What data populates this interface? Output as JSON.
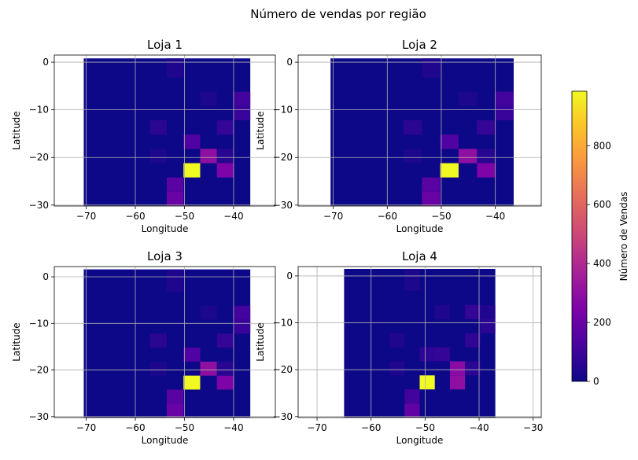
{
  "suptitle": "Número de vendas por região",
  "colorbar": {
    "label": "Número de Vendas",
    "ticks": [
      0,
      200,
      400,
      600,
      800
    ],
    "vmin": 0,
    "vmax": 985,
    "colormap": "plasma"
  },
  "chart_data": [
    {
      "type": "heatmap",
      "title": "Loja 1",
      "xlabel": "Longitude",
      "ylabel": "Latitude",
      "xlim": [
        -76.5,
        -31.5
      ],
      "ylim": [
        -30.2,
        1.5
      ],
      "xticks": [
        -70,
        -60,
        -50,
        -40
      ],
      "yticks": [
        0,
        -10,
        -20,
        -30
      ],
      "grid": true,
      "bin_edges_x": [
        -70.5,
        -67.2,
        -63.8,
        -60.4,
        -57.0,
        -53.6,
        -50.2,
        -46.8,
        -43.4,
        -40.0,
        -36.6
      ],
      "bin_edges_y": [
        -30.2,
        -27.2,
        -24.2,
        -21.2,
        -18.2,
        -15.2,
        -12.2,
        -9.2,
        -6.2,
        -3.2,
        0.8
      ],
      "cells": [
        {
          "xi": 5,
          "yi": 0,
          "value": 200
        },
        {
          "xi": 5,
          "yi": 1,
          "value": 160
        },
        {
          "xi": 6,
          "yi": 2,
          "value": 985
        },
        {
          "xi": 8,
          "yi": 2,
          "value": 250
        },
        {
          "xi": 7,
          "yi": 3,
          "value": 300
        },
        {
          "xi": 8,
          "yi": 3,
          "value": 55
        },
        {
          "xi": 4,
          "yi": 3,
          "value": 30
        },
        {
          "xi": 6,
          "yi": 4,
          "value": 140
        },
        {
          "xi": 4,
          "yi": 5,
          "value": 60
        },
        {
          "xi": 8,
          "yi": 5,
          "value": 80
        },
        {
          "xi": 9,
          "yi": 6,
          "value": 90
        },
        {
          "xi": 9,
          "yi": 7,
          "value": 110
        },
        {
          "xi": 7,
          "yi": 7,
          "value": 30
        },
        {
          "xi": 5,
          "yi": 9,
          "value": 40
        }
      ]
    },
    {
      "type": "heatmap",
      "title": "Loja 2",
      "xlabel": "Longitude",
      "ylabel": "Latitude",
      "xlim": [
        -76.5,
        -31.5
      ],
      "ylim": [
        -30.2,
        1.5
      ],
      "xticks": [
        -70,
        -60,
        -50,
        -40
      ],
      "yticks": [
        0,
        -10,
        -20,
        -30
      ],
      "grid": true,
      "bin_edges_x": [
        -70.5,
        -67.2,
        -63.8,
        -60.4,
        -57.0,
        -53.6,
        -50.2,
        -46.8,
        -43.4,
        -40.0,
        -36.6
      ],
      "bin_edges_y": [
        -30.2,
        -27.2,
        -24.2,
        -21.2,
        -18.2,
        -15.2,
        -12.2,
        -9.2,
        -6.2,
        -3.2,
        0.8
      ],
      "cells": [
        {
          "xi": 5,
          "yi": 0,
          "value": 200
        },
        {
          "xi": 5,
          "yi": 1,
          "value": 160
        },
        {
          "xi": 6,
          "yi": 2,
          "value": 985
        },
        {
          "xi": 8,
          "yi": 2,
          "value": 250
        },
        {
          "xi": 7,
          "yi": 3,
          "value": 300
        },
        {
          "xi": 8,
          "yi": 3,
          "value": 55
        },
        {
          "xi": 4,
          "yi": 3,
          "value": 30
        },
        {
          "xi": 6,
          "yi": 4,
          "value": 140
        },
        {
          "xi": 4,
          "yi": 5,
          "value": 60
        },
        {
          "xi": 8,
          "yi": 5,
          "value": 80
        },
        {
          "xi": 9,
          "yi": 6,
          "value": 90
        },
        {
          "xi": 9,
          "yi": 7,
          "value": 110
        },
        {
          "xi": 7,
          "yi": 7,
          "value": 30
        },
        {
          "xi": 5,
          "yi": 9,
          "value": 40
        }
      ]
    },
    {
      "type": "heatmap",
      "title": "Loja 3",
      "xlabel": "Longitude",
      "ylabel": "Latitude",
      "xlim": [
        -76.5,
        -31.5
      ],
      "ylim": [
        -30.2,
        2.2
      ],
      "xticks": [
        -70,
        -60,
        -50,
        -40
      ],
      "yticks": [
        0,
        -10,
        -20,
        -30
      ],
      "grid": true,
      "bin_edges_x": [
        -70.5,
        -67.2,
        -63.8,
        -60.4,
        -57.0,
        -53.6,
        -50.2,
        -46.8,
        -43.4,
        -40.0,
        -36.6
      ],
      "bin_edges_y": [
        -30.2,
        -27.2,
        -24.2,
        -21.2,
        -18.2,
        -15.2,
        -12.2,
        -9.2,
        -6.2,
        -3.2,
        1.6
      ],
      "cells": [
        {
          "xi": 5,
          "yi": 0,
          "value": 200
        },
        {
          "xi": 5,
          "yi": 1,
          "value": 160
        },
        {
          "xi": 6,
          "yi": 2,
          "value": 985
        },
        {
          "xi": 8,
          "yi": 2,
          "value": 250
        },
        {
          "xi": 7,
          "yi": 3,
          "value": 300
        },
        {
          "xi": 8,
          "yi": 3,
          "value": 55
        },
        {
          "xi": 4,
          "yi": 3,
          "value": 30
        },
        {
          "xi": 6,
          "yi": 4,
          "value": 140
        },
        {
          "xi": 4,
          "yi": 5,
          "value": 60
        },
        {
          "xi": 8,
          "yi": 5,
          "value": 80
        },
        {
          "xi": 9,
          "yi": 6,
          "value": 90
        },
        {
          "xi": 9,
          "yi": 7,
          "value": 110
        },
        {
          "xi": 7,
          "yi": 7,
          "value": 30
        },
        {
          "xi": 5,
          "yi": 9,
          "value": 40
        }
      ]
    },
    {
      "type": "heatmap",
      "title": "Loja 4",
      "xlabel": "Longitude",
      "ylabel": "Latitude",
      "xlim": [
        -73.5,
        -28.5
      ],
      "ylim": [
        -30.2,
        2.0
      ],
      "xticks": [
        -70,
        -60,
        -50,
        -40,
        -30
      ],
      "yticks": [
        0,
        -10,
        -20,
        -30
      ],
      "grid": true,
      "bin_edges_x": [
        -65.0,
        -62.2,
        -59.4,
        -56.6,
        -53.8,
        -51.0,
        -48.2,
        -45.4,
        -42.6,
        -39.8,
        -37.0
      ],
      "bin_edges_y": [
        -30.2,
        -27.2,
        -24.2,
        -21.2,
        -18.2,
        -15.2,
        -12.2,
        -9.2,
        -6.2,
        -3.2,
        1.5
      ],
      "cells": [
        {
          "xi": 4,
          "yi": 0,
          "value": 180
        },
        {
          "xi": 4,
          "yi": 1,
          "value": 110
        },
        {
          "xi": 5,
          "yi": 2,
          "value": 985
        },
        {
          "xi": 7,
          "yi": 2,
          "value": 300
        },
        {
          "xi": 7,
          "yi": 3,
          "value": 280
        },
        {
          "xi": 8,
          "yi": 3,
          "value": 60
        },
        {
          "xi": 3,
          "yi": 3,
          "value": 40
        },
        {
          "xi": 5,
          "yi": 4,
          "value": 70
        },
        {
          "xi": 6,
          "yi": 4,
          "value": 80
        },
        {
          "xi": 3,
          "yi": 5,
          "value": 40
        },
        {
          "xi": 8,
          "yi": 5,
          "value": 70
        },
        {
          "xi": 9,
          "yi": 6,
          "value": 60
        },
        {
          "xi": 9,
          "yi": 7,
          "value": 40
        },
        {
          "xi": 8,
          "yi": 7,
          "value": 80
        },
        {
          "xi": 6,
          "yi": 7,
          "value": 40
        },
        {
          "xi": 4,
          "yi": 9,
          "value": 30
        }
      ]
    }
  ]
}
